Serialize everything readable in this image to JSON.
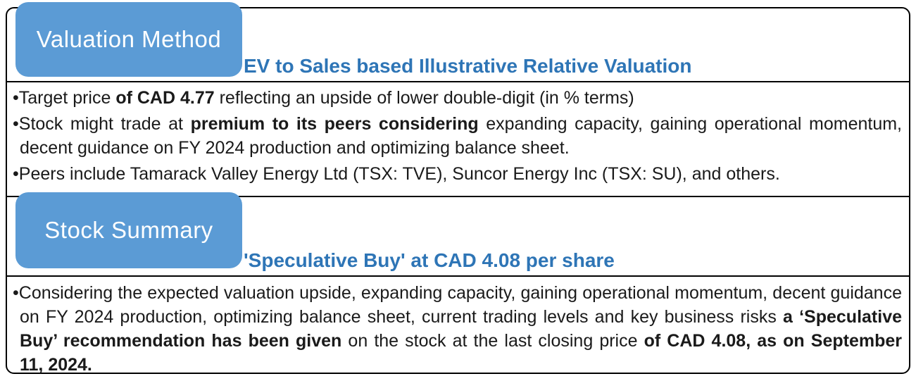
{
  "colors": {
    "tab_bg": "#5B9BD5",
    "heading": "#2E75B6",
    "border": "#000000",
    "body_text": "#1a1a1a",
    "tab_text": "#ffffff"
  },
  "bullet_char": "•",
  "sections": [
    {
      "tab_label": "Valuation Method",
      "heading": "EV to Sales based Illustrative Relative Valuation",
      "bullets": [
        {
          "runs": [
            {
              "text": "Target price ",
              "bold": false
            },
            {
              "text": "of CAD 4.77",
              "bold": true
            },
            {
              "text": " reflecting an upside of lower double-digit (in % terms)",
              "bold": false
            }
          ]
        },
        {
          "runs": [
            {
              "text": "Stock might trade at ",
              "bold": false
            },
            {
              "text": "premium to its peers considering",
              "bold": true
            },
            {
              "text": " expanding capacity, gaining operational momentum, decent guidance on FY 2024 production and optimizing balance sheet.",
              "bold": false
            }
          ]
        },
        {
          "runs": [
            {
              "text": "Peers include Tamarack Valley Energy Ltd (TSX: TVE), Suncor Energy Inc (TSX: SU), and others.",
              "bold": false
            }
          ]
        }
      ]
    },
    {
      "tab_label": "Stock Summary",
      "heading": "'Speculative Buy' at CAD 4.08 per share",
      "bullets": [
        {
          "runs": [
            {
              "text": "Considering the expected valuation upside, expanding capacity, gaining operational momentum, decent guidance on FY 2024 production, optimizing balance sheet, current trading levels and key business risks ",
              "bold": false
            },
            {
              "text": "a ‘Speculative Buy’ recommendation has been given",
              "bold": true
            },
            {
              "text": " on the stock at the last closing price ",
              "bold": false
            },
            {
              "text": "of CAD 4.08, as on September 11, 2024.",
              "bold": true
            }
          ]
        }
      ]
    }
  ]
}
